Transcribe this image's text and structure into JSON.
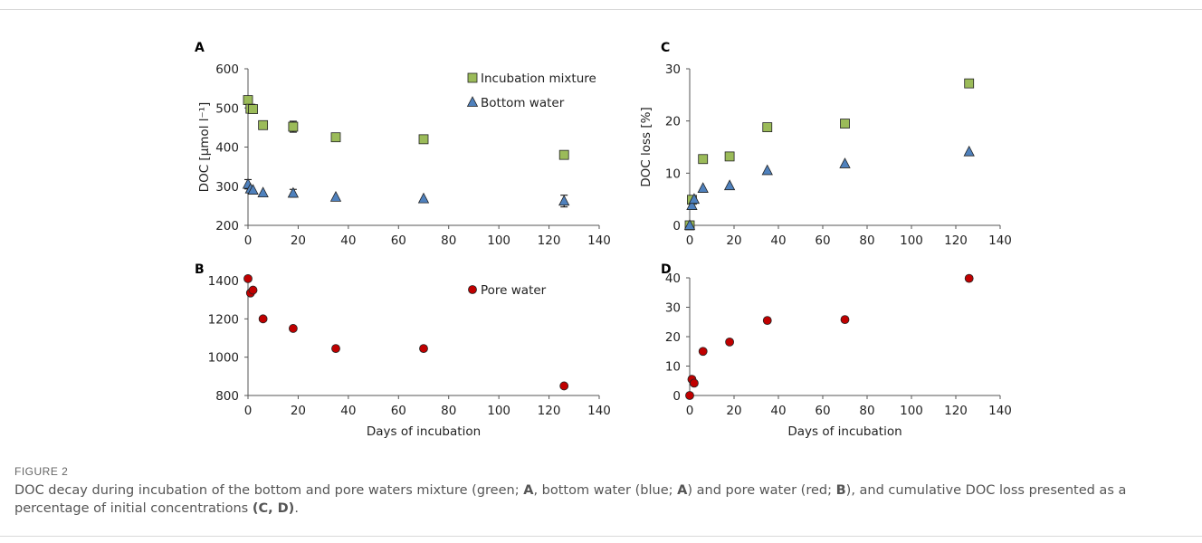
{
  "figure": {
    "label": "FIGURE 2",
    "caption": {
      "t1": "DOC decay during incubation of the bottom and pore waters mixture (green; ",
      "b1": "A",
      "t2": ", bottom water (blue; ",
      "b2": "A",
      "t3": ") and pore water (red; ",
      "b3": "B",
      "t4": "), and cumulative DOC loss presented as a percentage of initial concentrations ",
      "b4": "(C, D)",
      "t5": "."
    }
  },
  "colors": {
    "incubation": "#9bbb59",
    "bottom": "#4f81bd",
    "pore": "#c00000",
    "marker_edge": "#222222",
    "axis": "#555555"
  },
  "chart_data": [
    {
      "panel": "A",
      "type": "scatter",
      "ylabel": "DOC [µmol l⁻¹]",
      "xlabel": "",
      "xlim": [
        0,
        140
      ],
      "ylim": [
        200,
        600
      ],
      "xticks": [
        0,
        20,
        40,
        60,
        80,
        100,
        120,
        140
      ],
      "yticks": [
        200,
        300,
        400,
        500,
        600
      ],
      "legend": "top-right",
      "series": [
        {
          "name": "Incubation mixture",
          "marker": "square",
          "color": "incubation",
          "x": [
            0,
            1,
            2,
            6,
            18,
            35,
            70,
            126
          ],
          "y": [
            520,
            498,
            497,
            456,
            452,
            425,
            420,
            380
          ],
          "err": [
            0,
            0,
            0,
            0,
            14,
            0,
            0,
            10
          ]
        },
        {
          "name": "Bottom water",
          "marker": "triangle",
          "color": "bottom",
          "x": [
            0,
            1,
            2,
            6,
            18,
            35,
            70,
            126
          ],
          "y": [
            305,
            293,
            290,
            283,
            282,
            272,
            268,
            262
          ],
          "err": [
            12,
            0,
            0,
            0,
            10,
            0,
            0,
            15
          ]
        }
      ]
    },
    {
      "panel": "B",
      "type": "scatter",
      "ylabel": "",
      "xlabel": "Days of incubation",
      "xlim": [
        0,
        140
      ],
      "ylim": [
        800,
        1400
      ],
      "xticks": [
        0,
        20,
        40,
        60,
        80,
        100,
        120,
        140
      ],
      "yticks": [
        800,
        1000,
        1200,
        1400
      ],
      "legend": "top-right",
      "series": [
        {
          "name": "Pore water",
          "marker": "circle",
          "color": "pore",
          "x": [
            0,
            1,
            2,
            6,
            18,
            35,
            70,
            126
          ],
          "y": [
            1410,
            1335,
            1350,
            1200,
            1150,
            1045,
            1045,
            850
          ],
          "err": [
            0,
            0,
            0,
            0,
            0,
            0,
            0,
            0
          ]
        }
      ]
    },
    {
      "panel": "C",
      "type": "scatter",
      "ylabel": "DOC loss [%]",
      "xlabel": "",
      "xlim": [
        0,
        140
      ],
      "ylim": [
        0,
        30
      ],
      "xticks": [
        0,
        20,
        40,
        60,
        80,
        100,
        120,
        140
      ],
      "yticks": [
        0,
        10,
        20,
        30
      ],
      "legend": "none",
      "series": [
        {
          "name": "Incubation mixture",
          "marker": "square",
          "color": "incubation",
          "x": [
            0,
            1,
            6,
            18,
            35,
            70,
            126
          ],
          "y": [
            0,
            4.9,
            12.7,
            13.2,
            18.8,
            19.5,
            27.2
          ],
          "err": [
            0,
            0,
            0,
            0,
            0,
            0,
            0
          ]
        },
        {
          "name": "Bottom water",
          "marker": "triangle",
          "color": "bottom",
          "x": [
            0,
            1,
            2,
            6,
            18,
            35,
            70,
            126
          ],
          "y": [
            0,
            3.8,
            5.0,
            7.1,
            7.6,
            10.5,
            11.8,
            14.1
          ],
          "err": [
            0,
            0,
            0,
            0,
            0,
            0,
            0,
            0
          ]
        }
      ]
    },
    {
      "panel": "D",
      "type": "scatter",
      "ylabel": "",
      "xlabel": "Days of incubation",
      "xlim": [
        0,
        140
      ],
      "ylim": [
        0,
        40
      ],
      "xticks": [
        0,
        20,
        40,
        60,
        80,
        100,
        120,
        140
      ],
      "yticks": [
        0,
        10,
        20,
        30,
        40
      ],
      "legend": "none",
      "series": [
        {
          "name": "Pore water",
          "marker": "circle",
          "color": "pore",
          "x": [
            0,
            1,
            2,
            6,
            18,
            35,
            70,
            126
          ],
          "y": [
            0,
            5.5,
            4.2,
            15,
            18.2,
            25.5,
            25.8,
            39.8
          ],
          "err": [
            0,
            0,
            0,
            0,
            0,
            0,
            0,
            0
          ]
        }
      ]
    }
  ]
}
